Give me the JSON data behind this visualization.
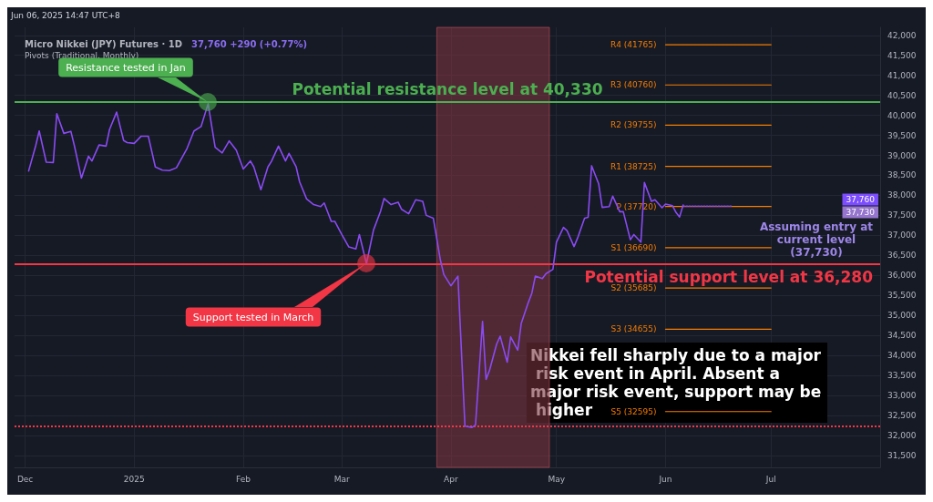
{
  "chart_data": {
    "type": "line",
    "title": "Micro Nikkei (JPY) Futures · 1D",
    "subtitle": "37,760 +290 (+0.77%)",
    "xlim": [
      "2024-11-28",
      "2025-08-01"
    ],
    "xticks": [
      {
        "value": "2024-12-01",
        "label": "Dec"
      },
      {
        "value": "2025-01-01",
        "label": "2025"
      },
      {
        "value": "2025-02-01",
        "label": "Feb"
      },
      {
        "value": "2025-03-01",
        "label": "Mar"
      },
      {
        "value": "2025-04-01",
        "label": "Apr"
      },
      {
        "value": "2025-05-01",
        "label": "May"
      },
      {
        "value": "2025-06-01",
        "label": "Jun"
      },
      {
        "value": "2025-07-01",
        "label": "Jul"
      }
    ],
    "ylim": [
      31200,
      42200
    ],
    "yticks": [
      {
        "value": 31500,
        "label": "31,500"
      },
      {
        "value": 32000,
        "label": "32,000"
      },
      {
        "value": 32500,
        "label": "32,500"
      },
      {
        "value": 33000,
        "label": "33,000"
      },
      {
        "value": 33500,
        "label": "33,500"
      },
      {
        "value": 34000,
        "label": "34,000"
      },
      {
        "value": 34500,
        "label": "34,500"
      },
      {
        "value": 35000,
        "label": "35,000"
      },
      {
        "value": 35500,
        "label": "35,500"
      },
      {
        "value": 36000,
        "label": "36,000"
      },
      {
        "value": 36500,
        "label": "36,500"
      },
      {
        "value": 37000,
        "label": "37,000"
      },
      {
        "value": 37500,
        "label": "37,500"
      },
      {
        "value": 38000,
        "label": "38,000"
      },
      {
        "value": 38500,
        "label": "38,500"
      },
      {
        "value": 39000,
        "label": "39,000"
      },
      {
        "value": 39500,
        "label": "39,500"
      },
      {
        "value": 40000,
        "label": "40,000"
      },
      {
        "value": 40500,
        "label": "40,500"
      },
      {
        "value": 41000,
        "label": "41,000"
      },
      {
        "value": 41500,
        "label": "41,500"
      },
      {
        "value": 42000,
        "label": "42,000"
      }
    ],
    "grid": true,
    "legend": false,
    "marker": "none",
    "line_style": "solid",
    "series": [
      {
        "color": "#8a4af3",
        "x": [
          "2024-12-02",
          "2024-12-04",
          "2024-12-05",
          "2024-12-07",
          "2024-12-09",
          "2024-12-10",
          "2024-12-12",
          "2024-12-14",
          "2024-12-15",
          "2024-12-17",
          "2024-12-19",
          "2024-12-20",
          "2024-12-22",
          "2024-12-24",
          "2024-12-25",
          "2024-12-27",
          "2024-12-29",
          "2024-12-30",
          "2025-01-01",
          "2025-01-03",
          "2025-01-05",
          "2025-01-07",
          "2025-01-09",
          "2025-01-11",
          "2025-01-13",
          "2025-01-16",
          "2025-01-18",
          "2025-01-20",
          "2025-01-22",
          "2025-01-24",
          "2025-01-26",
          "2025-01-28",
          "2025-01-30",
          "2025-02-01",
          "2025-02-03",
          "2025-02-04",
          "2025-02-06",
          "2025-02-08",
          "2025-02-09",
          "2025-02-11",
          "2025-02-13",
          "2025-02-14",
          "2025-02-16",
          "2025-02-17",
          "2025-02-19",
          "2025-02-21",
          "2025-02-23",
          "2025-02-24",
          "2025-02-26",
          "2025-02-27",
          "2025-03-01",
          "2025-03-03",
          "2025-03-05",
          "2025-03-06",
          "2025-03-08",
          "2025-03-10",
          "2025-03-12",
          "2025-03-13",
          "2025-03-15",
          "2025-03-17",
          "2025-03-18",
          "2025-03-20",
          "2025-03-22",
          "2025-03-24",
          "2025-03-25",
          "2025-03-27",
          "2025-03-29",
          "2025-03-30",
          "2025-04-01",
          "2025-04-03",
          "2025-04-05",
          "2025-04-07",
          "2025-04-08",
          "2025-04-10",
          "2025-04-11",
          "2025-04-12",
          "2025-04-14",
          "2025-04-15",
          "2025-04-17",
          "2025-04-18",
          "2025-04-20",
          "2025-04-21",
          "2025-04-23",
          "2025-04-24",
          "2025-04-25",
          "2025-04-27",
          "2025-04-28",
          "2025-04-30",
          "2025-05-01",
          "2025-05-03",
          "2025-05-04",
          "2025-05-06",
          "2025-05-07",
          "2025-05-09",
          "2025-05-10",
          "2025-05-11",
          "2025-05-13",
          "2025-05-14",
          "2025-05-16",
          "2025-05-17",
          "2025-05-19",
          "2025-05-20",
          "2025-05-22",
          "2025-05-23",
          "2025-05-25",
          "2025-05-26",
          "2025-05-28",
          "2025-05-29",
          "2025-05-31",
          "2025-06-01",
          "2025-06-03",
          "2025-06-04",
          "2025-06-05",
          "2025-06-06"
        ],
        "values": [
          38610,
          39240,
          39610,
          38830,
          38820,
          40040,
          39550,
          39600,
          39240,
          38430,
          38980,
          38860,
          39260,
          39230,
          39650,
          40080,
          39370,
          39320,
          39300,
          39480,
          39480,
          38710,
          38630,
          38620,
          38690,
          39170,
          39610,
          39720,
          40290,
          39200,
          39060,
          39360,
          39130,
          38660,
          38860,
          38710,
          38140,
          38710,
          38850,
          39230,
          38860,
          39050,
          38720,
          38340,
          37910,
          37770,
          37720,
          37810,
          37350,
          37350,
          37020,
          36710,
          36660,
          37020,
          36290,
          37130,
          37600,
          37920,
          37770,
          37830,
          37650,
          37540,
          37890,
          37850,
          37500,
          37430,
          36390,
          36020,
          35740,
          35980,
          32230,
          32200,
          32260,
          34850,
          33400,
          33630,
          34280,
          34480,
          33830,
          34460,
          34130,
          34800,
          35320,
          35550,
          35980,
          35920,
          36040,
          36150,
          36830,
          37200,
          37120,
          36720,
          36930,
          37430,
          37450,
          38740,
          38290,
          37700,
          37720,
          37980,
          37590,
          37590,
          36890,
          37020,
          36830,
          38320,
          37850,
          37890,
          37690,
          37780,
          37740,
          37570,
          37460,
          37760
        ]
      },
      {
        "color": "#8a4af3",
        "line_style": "dotted",
        "x": [
          "2025-06-06",
          "2025-06-20"
        ],
        "values": [
          37730,
          37730
        ]
      },
      {
        "name": "R4 (41765)",
        "color": "#f57c00",
        "x": [
          "2025-06-01",
          "2025-07-01"
        ],
        "values": [
          41765,
          41765
        ]
      },
      {
        "name": "R3 (40760)",
        "color": "#f57c00",
        "x": [
          "2025-06-01",
          "2025-07-01"
        ],
        "values": [
          40760,
          40760
        ]
      },
      {
        "name": "R2 (39755)",
        "color": "#f57c00",
        "x": [
          "2025-06-01",
          "2025-07-01"
        ],
        "values": [
          39755,
          39755
        ]
      },
      {
        "name": "R1 (38725)",
        "color": "#f57c00",
        "x": [
          "2025-06-01",
          "2025-07-01"
        ],
        "values": [
          38725,
          38725
        ]
      },
      {
        "name": "P (37720)",
        "color": "#f57c00",
        "x": [
          "2025-06-01",
          "2025-07-01"
        ],
        "values": [
          37720,
          37720
        ]
      },
      {
        "name": "S1 (36690)",
        "color": "#f57c00",
        "x": [
          "2025-06-01",
          "2025-07-01"
        ],
        "values": [
          36690,
          36690
        ]
      },
      {
        "name": "S2 (35685)",
        "color": "#f57c00",
        "x": [
          "2025-06-01",
          "2025-07-01"
        ],
        "values": [
          35685,
          35685
        ]
      },
      {
        "name": "S3 (34655)",
        "color": "#f57c00",
        "x": [
          "2025-06-01",
          "2025-07-01"
        ],
        "values": [
          34655,
          34655
        ]
      },
      {
        "name": "S5 (32595)",
        "color": "#f57c00",
        "x": [
          "2025-06-01",
          "2025-07-01"
        ],
        "values": [
          32595,
          32595
        ]
      }
    ],
    "ref_lines": [
      {
        "axis": "y",
        "value": 40330,
        "label": "Potential resistance level at 40,330",
        "color": "#4caf50",
        "line_style": "solid"
      },
      {
        "axis": "y",
        "value": 36280,
        "label": "Potential support level at 36,280",
        "color": "#f23645",
        "line_style": "solid"
      },
      {
        "axis": "y",
        "value": 32230,
        "label": null,
        "color": "#f23645",
        "line_style": "dotted"
      }
    ],
    "bands": [
      {
        "axis": "x",
        "from": "2025-03-28",
        "to": "2025-04-29",
        "label": null,
        "color": "#7a3340"
      }
    ],
    "annotations": [
      "Jun 06, 2025 14:47 UTC+8",
      "Pivots (Traditional, Monthly)",
      "Resistance tested in Jan",
      "Support tested in March",
      "Nikkei fell sharply due to a major risk event in April. Absent a major risk event, support may be higher",
      "Assuming entry at current level (37,730)",
      "37,760",
      "37,730"
    ]
  }
}
